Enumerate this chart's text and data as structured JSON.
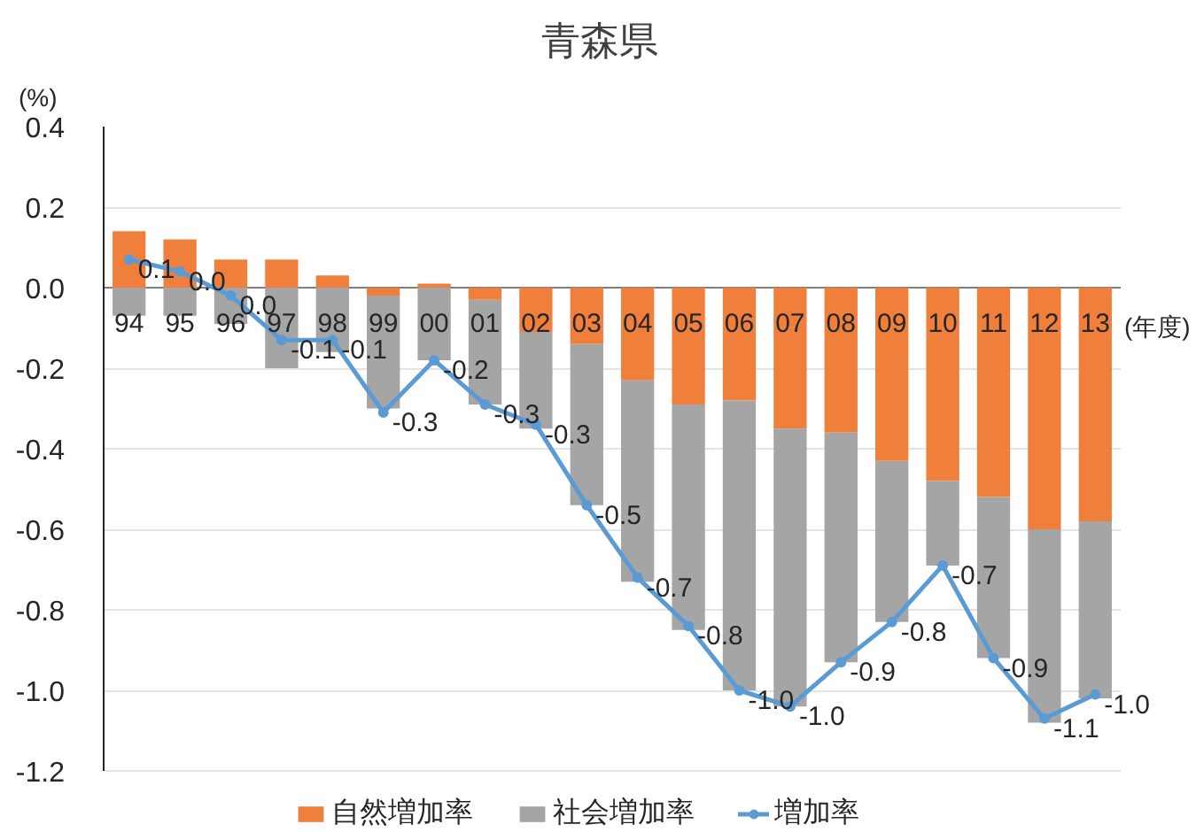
{
  "chart_data": {
    "type": "bar",
    "title": "青森県",
    "ylabel": "(%)",
    "xlabel": "(年度)",
    "categories": [
      "94",
      "95",
      "96",
      "97",
      "98",
      "99",
      "00",
      "01",
      "02",
      "03",
      "04",
      "05",
      "06",
      "07",
      "08",
      "09",
      "10",
      "11",
      "12",
      "13"
    ],
    "stacked": true,
    "series": [
      {
        "name": "自然増加率",
        "color": "#f07f3c",
        "values": [
          0.14,
          0.12,
          0.07,
          0.07,
          0.03,
          -0.02,
          0.01,
          -0.03,
          -0.11,
          -0.14,
          -0.23,
          -0.29,
          -0.28,
          -0.35,
          -0.36,
          -0.43,
          -0.48,
          -0.52,
          -0.6,
          -0.58
        ]
      },
      {
        "name": "社会増加率",
        "color": "#a5a5a5",
        "values": [
          -0.07,
          -0.07,
          -0.09,
          -0.2,
          -0.16,
          -0.28,
          -0.18,
          -0.26,
          -0.24,
          -0.4,
          -0.5,
          -0.56,
          -0.72,
          -0.69,
          -0.57,
          -0.4,
          -0.21,
          -0.4,
          -0.48,
          -0.44
        ]
      },
      {
        "name": "増加率",
        "type": "line",
        "color": "#5b9bd5",
        "values": [
          0.07,
          0.04,
          -0.02,
          -0.13,
          -0.13,
          -0.31,
          -0.18,
          -0.29,
          -0.34,
          -0.54,
          -0.72,
          -0.84,
          -1.0,
          -1.04,
          -0.93,
          -0.83,
          -0.69,
          -0.92,
          -1.07,
          -1.01
        ],
        "value_labels": [
          "0.1",
          "0.0",
          "0.0",
          "-0.1",
          "-0.1",
          "-0.3",
          "-0.2",
          "-0.3",
          "-0.3",
          "-0.5",
          "-0.7",
          "-0.8",
          "-1.0",
          "-1.0",
          "-0.9",
          "-0.8",
          "-0.7",
          "-0.9",
          "-1.1",
          "-1.0"
        ]
      }
    ],
    "ylim": [
      -1.2,
      0.4
    ],
    "yticks": [
      -1.2,
      {
        "value": -1,
        "label": "-1.0"
      },
      -0.8,
      -0.6,
      -0.4,
      -0.2,
      {
        "value": 0,
        "label": "0.0"
      },
      0.2,
      0.4
    ],
    "grid": "y",
    "legend": "bottom",
    "marker": "circle"
  }
}
